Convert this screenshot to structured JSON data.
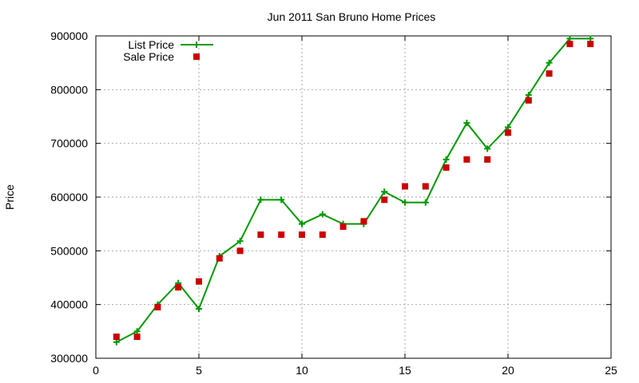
{
  "chart_data": {
    "type": "line",
    "title": "Jun 2011 San Bruno Home Prices",
    "xlabel": "",
    "ylabel": "Price",
    "xlim": [
      0,
      25
    ],
    "ylim": [
      300000,
      900000
    ],
    "x_ticks": [
      0,
      5,
      10,
      15,
      20,
      25
    ],
    "y_ticks": [
      300000,
      400000,
      500000,
      600000,
      700000,
      800000,
      900000
    ],
    "grid": true,
    "legend_position": "top-left",
    "series": [
      {
        "name": "List Price",
        "style": "line+cross",
        "color": "#009900",
        "x": [
          1,
          2,
          3,
          4,
          5,
          6,
          7,
          8,
          9,
          10,
          11,
          12,
          13,
          14,
          15,
          16,
          17,
          18,
          19,
          20,
          21,
          22,
          23,
          24
        ],
        "values": [
          330000,
          350000,
          400000,
          440000,
          392000,
          490000,
          518000,
          595000,
          595000,
          550000,
          568000,
          550000,
          550000,
          610000,
          590000,
          590000,
          670000,
          738000,
          690000,
          730000,
          790000,
          850000,
          895000,
          895000
        ]
      },
      {
        "name": "Sale Price",
        "style": "square-points",
        "color": "#cc0000",
        "x": [
          1,
          2,
          3,
          4,
          5,
          6,
          7,
          8,
          9,
          10,
          11,
          12,
          13,
          14,
          15,
          16,
          17,
          18,
          19,
          20,
          21,
          22,
          23,
          24
        ],
        "values": [
          340000,
          340000,
          395000,
          432000,
          443000,
          486000,
          500000,
          530000,
          530000,
          530000,
          530000,
          545000,
          555000,
          595000,
          620000,
          620000,
          655000,
          670000,
          670000,
          720000,
          780000,
          830000,
          885000,
          885000
        ]
      }
    ]
  }
}
